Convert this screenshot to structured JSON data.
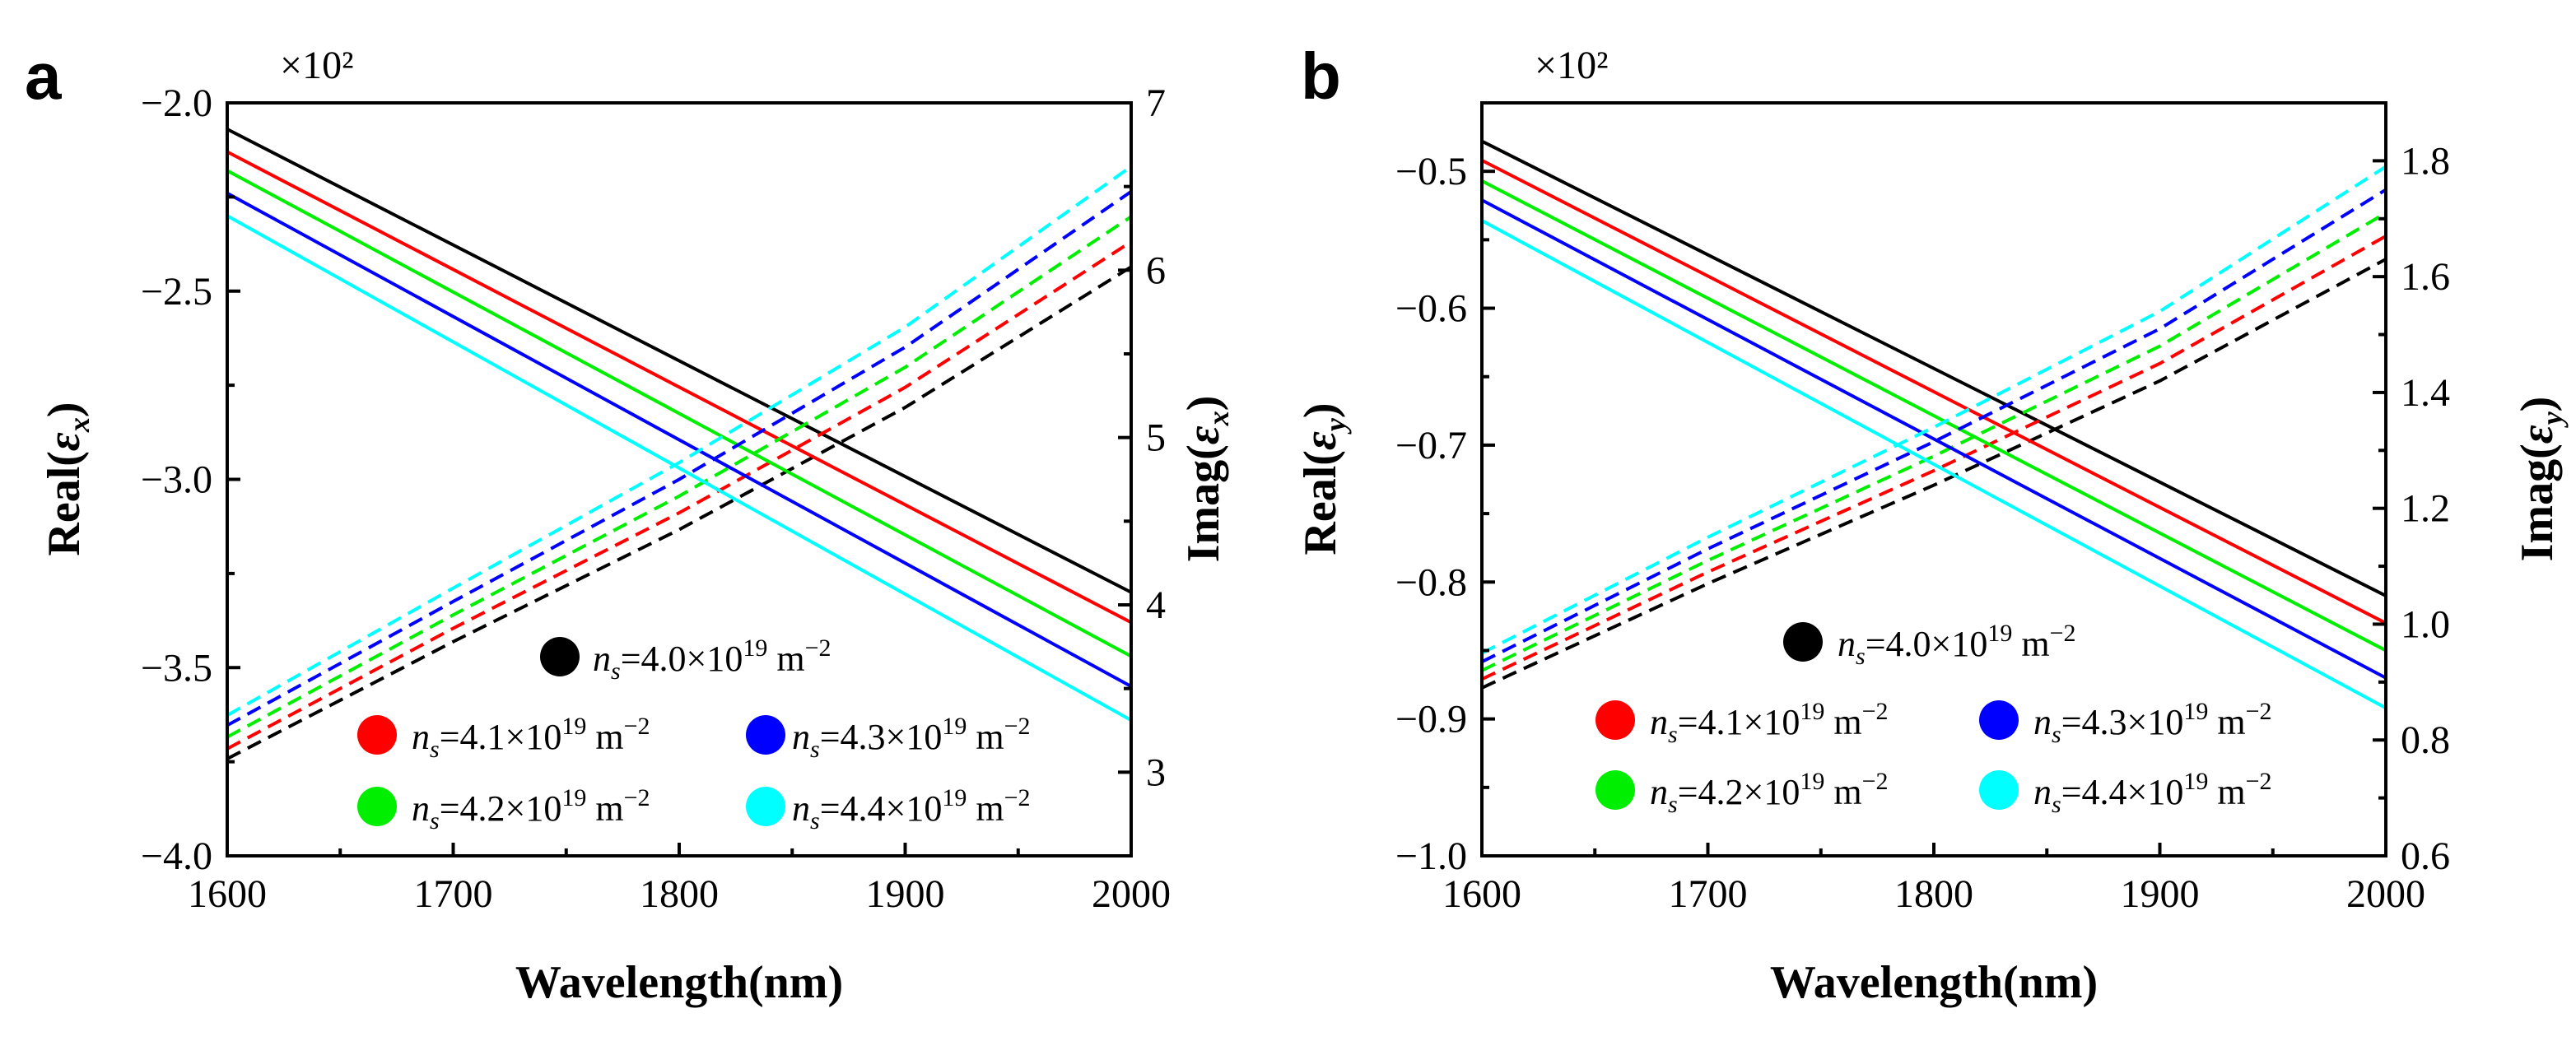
{
  "chart_data": [
    {
      "type": "line",
      "panel_label": "a",
      "xlabel": "Wavelength(nm)",
      "ylabel_left": "Real(εx)",
      "ylabel_right": "Imag(εx)",
      "ylabel_symbol": "ε",
      "ylabel_sub": "x",
      "multiplier": "×10²",
      "xlim": [
        1600,
        2000
      ],
      "xticks": [
        "1600",
        "1700",
        "1800",
        "1900",
        "2000"
      ],
      "ylim_left": [
        -4.0,
        -2.0
      ],
      "yticks_left": [
        "-4.0",
        "-3.5",
        "-3.0",
        "-2.5",
        "-2.0"
      ],
      "ylim_right": [
        2.5,
        7.0
      ],
      "yticks_right": [
        "3",
        "4",
        "5",
        "6",
        "7"
      ],
      "series": [
        {
          "name": "ns=4.0×10^19 m^-2",
          "n_value": "4.0",
          "color": "#000000",
          "real_x": [
            1600,
            2000
          ],
          "real_y": [
            -2.07,
            -3.3
          ],
          "imag_x": [
            1600,
            1700,
            1800,
            1900,
            2000
          ],
          "imag_y": [
            3.08,
            3.78,
            4.45,
            5.18,
            6.02
          ]
        },
        {
          "name": "ns=4.1×10^19 m^-2",
          "n_value": "4.1",
          "color": "#ff0000",
          "real_x": [
            1600,
            2000
          ],
          "real_y": [
            -2.13,
            -3.38
          ],
          "imag_x": [
            1600,
            1700,
            1800,
            1900,
            2000
          ],
          "imag_y": [
            3.14,
            3.86,
            4.55,
            5.3,
            6.17
          ]
        },
        {
          "name": "ns=4.2×10^19 m^-2",
          "n_value": "4.2",
          "color": "#00ee00",
          "real_x": [
            1600,
            2000
          ],
          "real_y": [
            -2.18,
            -3.47
          ],
          "imag_x": [
            1600,
            1700,
            1800,
            1900,
            2000
          ],
          "imag_y": [
            3.21,
            3.94,
            4.65,
            5.42,
            6.32
          ]
        },
        {
          "name": "ns=4.3×10^19 m^-2",
          "n_value": "4.3",
          "color": "#0000ff",
          "real_x": [
            1600,
            2000
          ],
          "real_y": [
            -2.24,
            -3.55
          ],
          "imag_x": [
            1600,
            1700,
            1800,
            1900,
            2000
          ],
          "imag_y": [
            3.28,
            4.02,
            4.75,
            5.54,
            6.47
          ]
        },
        {
          "name": "ns=4.4×10^19 m^-2",
          "n_value": "4.4",
          "color": "#00ffff",
          "real_x": [
            1600,
            2000
          ],
          "real_y": [
            -2.3,
            -3.64
          ],
          "imag_x": [
            1600,
            1700,
            1800,
            1900,
            2000
          ],
          "imag_y": [
            3.34,
            4.1,
            4.85,
            5.66,
            6.62
          ]
        }
      ],
      "line_styles": {
        "real": "solid",
        "imag": "dashed"
      },
      "legend": {
        "position": "lower-right",
        "unit_exp": "19",
        "unit": "m",
        "unit_exp2": "-2"
      }
    },
    {
      "type": "line",
      "panel_label": "b",
      "xlabel": "Wavelength(nm)",
      "ylabel_left": "Real(εy)",
      "ylabel_right": "Imag(εy)",
      "ylabel_symbol": "ε",
      "ylabel_sub": "y",
      "multiplier": "×10²",
      "xlim": [
        1600,
        2000
      ],
      "xticks": [
        "1600",
        "1700",
        "1800",
        "1900",
        "2000"
      ],
      "ylim_left": [
        -1.0,
        -0.45
      ],
      "yticks_left": [
        "-1.0",
        "-0.9",
        "-0.8",
        "-0.7",
        "-0.6",
        "-0.5"
      ],
      "ylim_right": [
        0.6,
        1.9
      ],
      "yticks_right": [
        "0.6",
        "0.8",
        "1.0",
        "1.2",
        "1.4",
        "1.6",
        "1.8"
      ],
      "series": [
        {
          "name": "ns=4.0×10^19 m^-2",
          "n_value": "4.0",
          "color": "#000000",
          "real_x": [
            1600,
            2000
          ],
          "real_y": [
            -0.478,
            -0.81
          ],
          "imag_x": [
            1600,
            1700,
            1800,
            1900,
            2000
          ],
          "imag_y": [
            0.89,
            1.07,
            1.24,
            1.42,
            1.63
          ]
        },
        {
          "name": "ns=4.1×10^19 m^-2",
          "n_value": "4.1",
          "color": "#ff0000",
          "real_x": [
            1600,
            2000
          ],
          "real_y": [
            -0.492,
            -0.83
          ],
          "imag_x": [
            1600,
            1700,
            1800,
            1900,
            2000
          ],
          "imag_y": [
            0.905,
            1.09,
            1.265,
            1.45,
            1.67
          ]
        },
        {
          "name": "ns=4.2×10^19 m^-2",
          "n_value": "4.2",
          "color": "#00ee00",
          "real_x": [
            1600,
            2000
          ],
          "real_y": [
            -0.507,
            -0.85
          ],
          "imag_x": [
            1600,
            1700,
            1800,
            1900,
            2000
          ],
          "imag_y": [
            0.92,
            1.11,
            1.29,
            1.48,
            1.71
          ]
        },
        {
          "name": "ns=4.3×10^19 m^-2",
          "n_value": "4.3",
          "color": "#0000ff",
          "real_x": [
            1600,
            2000
          ],
          "real_y": [
            -0.521,
            -0.87
          ],
          "imag_x": [
            1600,
            1700,
            1800,
            1900,
            2000
          ],
          "imag_y": [
            0.935,
            1.13,
            1.315,
            1.51,
            1.75
          ]
        },
        {
          "name": "ns=4.4×10^19 m^-2",
          "n_value": "4.4",
          "color": "#00ffff",
          "real_x": [
            1600,
            2000
          ],
          "real_y": [
            -0.536,
            -0.892
          ],
          "imag_x": [
            1600,
            1700,
            1800,
            1900,
            2000
          ],
          "imag_y": [
            0.95,
            1.15,
            1.34,
            1.54,
            1.79
          ]
        }
      ],
      "line_styles": {
        "real": "solid",
        "imag": "dashed"
      },
      "legend": {
        "position": "lower-right",
        "unit_exp": "19",
        "unit": "m",
        "unit_exp2": "-2"
      }
    }
  ]
}
